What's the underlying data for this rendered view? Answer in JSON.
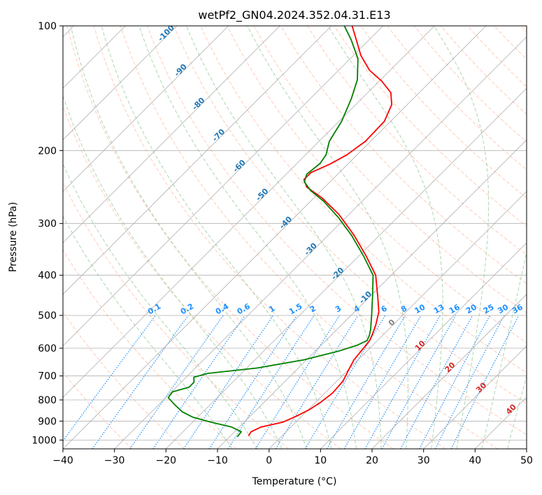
{
  "chart_data": {
    "type": "line",
    "title": "wetPf2_GN04.2024.352.04.31.E13",
    "xlabel": "Temperature (°C)",
    "ylabel": "Pressure (hPa)",
    "xlim": [
      -40,
      50
    ],
    "ylim": [
      1050,
      100
    ],
    "y_scale": "log",
    "x_ticks": [
      "−40",
      "−30",
      "−20",
      "−10",
      "0",
      "10",
      "20",
      "30",
      "40",
      "50"
    ],
    "x_tick_values": [
      -40,
      -30,
      -20,
      -10,
      0,
      10,
      20,
      30,
      40,
      50
    ],
    "y_ticks": [
      "100",
      "200",
      "300",
      "400",
      "500",
      "600",
      "700",
      "800",
      "900",
      "1000"
    ],
    "y_tick_values": [
      100,
      200,
      300,
      400,
      500,
      600,
      700,
      800,
      900,
      1000
    ],
    "grid": true,
    "skew_degrees": 45,
    "series": [
      {
        "kind": "temperature",
        "color": "#ff0000",
        "points": [
          {
            "p": 977,
            "t": -6.5
          },
          {
            "p": 955,
            "t": -6.8
          },
          {
            "p": 930,
            "t": -5.8
          },
          {
            "p": 905,
            "t": -2.5
          },
          {
            "p": 875,
            "t": -1.0
          },
          {
            "p": 845,
            "t": 0.2
          },
          {
            "p": 810,
            "t": 1.0
          },
          {
            "p": 770,
            "t": 1.5
          },
          {
            "p": 720,
            "t": 1.2
          },
          {
            "p": 680,
            "t": 0.2
          },
          {
            "p": 640,
            "t": -0.8
          },
          {
            "p": 600,
            "t": -1.2
          },
          {
            "p": 575,
            "t": -1.5
          },
          {
            "p": 555,
            "t": -2.2
          },
          {
            "p": 530,
            "t": -3.2
          },
          {
            "p": 490,
            "t": -5.3
          },
          {
            "p": 450,
            "t": -8.5
          },
          {
            "p": 400,
            "t": -13.0
          },
          {
            "p": 360,
            "t": -18.5
          },
          {
            "p": 320,
            "t": -25.0
          },
          {
            "p": 285,
            "t": -32.0
          },
          {
            "p": 260,
            "t": -38.5
          },
          {
            "p": 245,
            "t": -43.5
          },
          {
            "p": 235,
            "t": -45.5
          },
          {
            "p": 226,
            "t": -45.5
          },
          {
            "p": 216,
            "t": -43.5
          },
          {
            "p": 205,
            "t": -42.0
          },
          {
            "p": 190,
            "t": -41.0
          },
          {
            "p": 170,
            "t": -41.2
          },
          {
            "p": 155,
            "t": -43.0
          },
          {
            "p": 145,
            "t": -45.5
          },
          {
            "p": 136,
            "t": -49.5
          },
          {
            "p": 128,
            "t": -54.0
          },
          {
            "p": 118,
            "t": -58.5
          },
          {
            "p": 108,
            "t": -62.5
          },
          {
            "p": 100,
            "t": -66.0
          }
        ]
      },
      {
        "kind": "dewpoint",
        "color": "#008000",
        "points": [
          {
            "p": 982,
            "t": -8.5
          },
          {
            "p": 955,
            "t": -8.7
          },
          {
            "p": 930,
            "t": -11.5
          },
          {
            "p": 905,
            "t": -16.5
          },
          {
            "p": 880,
            "t": -21.0
          },
          {
            "p": 855,
            "t": -24.0
          },
          {
            "p": 820,
            "t": -27.0
          },
          {
            "p": 790,
            "t": -29.5
          },
          {
            "p": 765,
            "t": -29.8
          },
          {
            "p": 745,
            "t": -27.5
          },
          {
            "p": 725,
            "t": -27.5
          },
          {
            "p": 705,
            "t": -28.5
          },
          {
            "p": 690,
            "t": -26.5
          },
          {
            "p": 670,
            "t": -18.0
          },
          {
            "p": 640,
            "t": -10.5
          },
          {
            "p": 610,
            "t": -5.5
          },
          {
            "p": 590,
            "t": -3.0
          },
          {
            "p": 575,
            "t": -2.0
          },
          {
            "p": 560,
            "t": -2.5
          },
          {
            "p": 540,
            "t": -3.5
          },
          {
            "p": 500,
            "t": -6.0
          },
          {
            "p": 450,
            "t": -9.5
          },
          {
            "p": 400,
            "t": -13.5
          },
          {
            "p": 360,
            "t": -19.0
          },
          {
            "p": 320,
            "t": -25.5
          },
          {
            "p": 290,
            "t": -31.5
          },
          {
            "p": 265,
            "t": -37.5
          },
          {
            "p": 250,
            "t": -42.0
          },
          {
            "p": 238,
            "t": -45.0
          },
          {
            "p": 228,
            "t": -46.0
          },
          {
            "p": 215,
            "t": -45.5
          },
          {
            "p": 205,
            "t": -46.0
          },
          {
            "p": 190,
            "t": -48.0
          },
          {
            "p": 170,
            "t": -49.5
          },
          {
            "p": 150,
            "t": -52.0
          },
          {
            "p": 135,
            "t": -54.5
          },
          {
            "p": 120,
            "t": -58.5
          },
          {
            "p": 108,
            "t": -63.5
          },
          {
            "p": 100,
            "t": -67.5
          }
        ]
      }
    ],
    "isotherm_labels": [
      "-100",
      "-90",
      "-80",
      "-70",
      "-60",
      "-50",
      "-40",
      "-30",
      "-20",
      "-10"
    ],
    "isotherm_label_values": [
      -100,
      -90,
      -80,
      -70,
      -60,
      -50,
      -40,
      -30,
      -20,
      -10
    ],
    "mixing_ratio_labels": [
      "0.1",
      "0.2",
      "0.4",
      "0.6",
      "1",
      "1.5",
      "2",
      "3",
      "4",
      "6",
      "8",
      "10",
      "13",
      "16",
      "20",
      "25",
      "30",
      "36"
    ],
    "mixing_ratio_values": [
      0.1,
      0.2,
      0.4,
      0.6,
      1,
      1.5,
      2,
      3,
      4,
      6,
      8,
      10,
      13,
      16,
      20,
      25,
      30,
      36
    ],
    "positive_isotherm_labels": [
      "0",
      "10",
      "20",
      "30",
      "40"
    ],
    "positive_isotherm_values": [
      0,
      10,
      20,
      30,
      40
    ],
    "colors": {
      "temperature": "#ff0000",
      "dewpoint": "#008000",
      "isobar_grid": "#b0b0b0",
      "dry_adiabat": "#ffa07a",
      "moist_adiabat": "#90c890",
      "mixing_ratio": "#1e90ff",
      "isotherm_label": "#1f77b4",
      "positive_label": "#d62728",
      "zero_label": "#808080"
    }
  }
}
